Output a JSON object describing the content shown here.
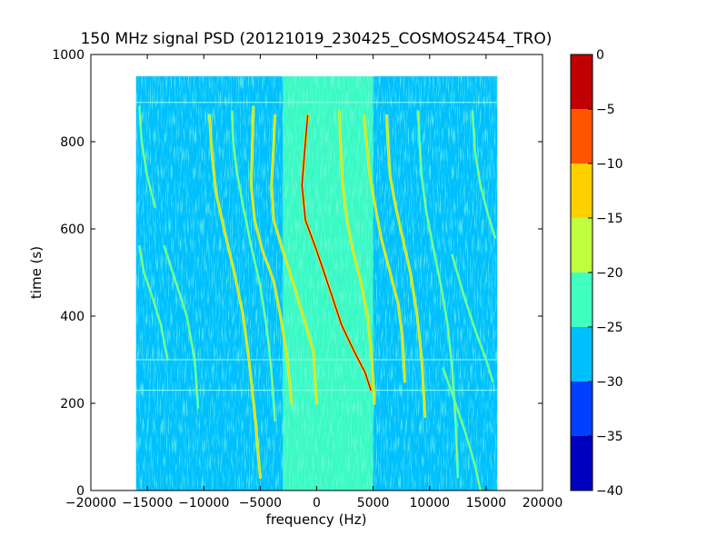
{
  "chart_data": {
    "type": "heatmap",
    "title": "150 MHz signal PSD (20121019_230425_COSMOS2454_TRO)",
    "xlabel": "frequency (Hz)",
    "ylabel": "time (s)",
    "xlim": [
      -20000,
      20000
    ],
    "ylim": [
      0,
      1000
    ],
    "xticks": [
      -20000,
      -15000,
      -10000,
      -5000,
      0,
      5000,
      10000,
      15000,
      20000
    ],
    "yticks": [
      0,
      200,
      400,
      600,
      800,
      1000
    ],
    "data_extent": {
      "x": [
        -16000,
        16000
      ],
      "y": [
        0,
        950
      ]
    },
    "background_level_range": [
      -30,
      -25
    ],
    "center_noise_level_range": [
      -25,
      -20
    ],
    "center_noise_band_hz": [
      -3000,
      5000
    ],
    "horizontal_artifact_times_s": [
      890,
      300,
      230
    ],
    "colorbar": {
      "ticks": [
        0,
        -5,
        -10,
        -15,
        -20,
        -25,
        -30,
        -35,
        -40
      ],
      "levels": [
        {
          "range": [
            -40,
            -35
          ],
          "color": "#0000bf"
        },
        {
          "range": [
            -35,
            -30
          ],
          "color": "#0040ff"
        },
        {
          "range": [
            -30,
            -25
          ],
          "color": "#00bfff"
        },
        {
          "range": [
            -25,
            -20
          ],
          "color": "#40ffbf"
        },
        {
          "range": [
            -20,
            -15
          ],
          "color": "#bfff40"
        },
        {
          "range": [
            -15,
            -10
          ],
          "color": "#ffd000"
        },
        {
          "range": [
            -10,
            -5
          ],
          "color": "#ff5500"
        },
        {
          "range": [
            -5,
            0
          ],
          "color": "#bf0000"
        }
      ]
    },
    "traces": [
      {
        "level": "strong",
        "points": [
          [
            -800,
            860
          ],
          [
            -1000,
            800
          ],
          [
            -1300,
            700
          ],
          [
            -1000,
            620
          ],
          [
            0,
            550
          ],
          [
            1300,
            450
          ],
          [
            2200,
            380
          ],
          [
            3300,
            320
          ],
          [
            4300,
            270
          ],
          [
            4800,
            230
          ]
        ]
      },
      {
        "level": "medium",
        "points": [
          [
            -3700,
            860
          ],
          [
            -3800,
            800
          ],
          [
            -4000,
            700
          ],
          [
            -3800,
            620
          ],
          [
            -3000,
            550
          ],
          [
            -2000,
            470
          ],
          [
            -1200,
            400
          ],
          [
            -300,
            320
          ],
          [
            0,
            200
          ]
        ]
      },
      {
        "level": "medium",
        "points": [
          [
            -5600,
            880
          ],
          [
            -5700,
            800
          ],
          [
            -5800,
            700
          ],
          [
            -5500,
            620
          ],
          [
            -4800,
            550
          ],
          [
            -3800,
            480
          ],
          [
            -3200,
            400
          ],
          [
            -2600,
            300
          ],
          [
            -2200,
            200
          ]
        ]
      },
      {
        "level": "medium",
        "points": [
          [
            2000,
            870
          ],
          [
            2100,
            800
          ],
          [
            2300,
            700
          ],
          [
            2700,
            620
          ],
          [
            3200,
            550
          ],
          [
            3900,
            480
          ],
          [
            4500,
            400
          ],
          [
            4900,
            300
          ],
          [
            5100,
            200
          ]
        ]
      },
      {
        "level": "medium",
        "points": [
          [
            4200,
            860
          ],
          [
            4400,
            800
          ],
          [
            4700,
            720
          ],
          [
            5200,
            650
          ],
          [
            5700,
            580
          ],
          [
            6500,
            500
          ],
          [
            7200,
            430
          ],
          [
            7600,
            350
          ],
          [
            7800,
            250
          ]
        ]
      },
      {
        "level": "medium",
        "points": [
          [
            6200,
            860
          ],
          [
            6300,
            800
          ],
          [
            6500,
            720
          ],
          [
            7000,
            650
          ],
          [
            7600,
            580
          ],
          [
            8300,
            500
          ],
          [
            8900,
            400
          ],
          [
            9300,
            300
          ],
          [
            9600,
            170
          ]
        ]
      },
      {
        "level": "medium",
        "points": [
          [
            -9500,
            860
          ],
          [
            -9300,
            780
          ],
          [
            -8900,
            680
          ],
          [
            -8200,
            600
          ],
          [
            -7300,
            500
          ],
          [
            -6500,
            400
          ],
          [
            -6000,
            300
          ],
          [
            -5500,
            180
          ],
          [
            -5000,
            30
          ]
        ]
      },
      {
        "level": "weak",
        "points": [
          [
            -7500,
            870
          ],
          [
            -7400,
            800
          ],
          [
            -7000,
            720
          ],
          [
            -6500,
            650
          ],
          [
            -5800,
            560
          ],
          [
            -5000,
            470
          ],
          [
            -4400,
            370
          ],
          [
            -4000,
            270
          ],
          [
            -3700,
            160
          ]
        ]
      },
      {
        "level": "weak",
        "points": [
          [
            9000,
            870
          ],
          [
            9100,
            800
          ],
          [
            9300,
            720
          ],
          [
            9700,
            640
          ],
          [
            10300,
            560
          ],
          [
            11000,
            470
          ],
          [
            11600,
            380
          ],
          [
            12000,
            280
          ],
          [
            12300,
            160
          ],
          [
            12500,
            30
          ]
        ]
      },
      {
        "level": "weak",
        "points": [
          [
            13800,
            870
          ],
          [
            14000,
            780
          ],
          [
            14500,
            700
          ],
          [
            15200,
            630
          ],
          [
            15800,
            580
          ]
        ]
      },
      {
        "level": "weak",
        "points": [
          [
            -15700,
            880
          ],
          [
            -15500,
            800
          ],
          [
            -15000,
            720
          ],
          [
            -14300,
            650
          ]
        ]
      },
      {
        "level": "weak",
        "points": [
          [
            -15700,
            560
          ],
          [
            -15300,
            500
          ],
          [
            -14500,
            440
          ],
          [
            -13800,
            380
          ],
          [
            -13200,
            300
          ]
        ]
      },
      {
        "level": "weak",
        "points": [
          [
            -13500,
            560
          ],
          [
            -12500,
            480
          ],
          [
            -11500,
            400
          ],
          [
            -10800,
            300
          ],
          [
            -10500,
            190
          ]
        ]
      },
      {
        "level": "weak",
        "points": [
          [
            12000,
            540
          ],
          [
            13000,
            450
          ],
          [
            14000,
            370
          ],
          [
            15000,
            300
          ],
          [
            15600,
            250
          ]
        ]
      },
      {
        "level": "weak",
        "points": [
          [
            11200,
            280
          ],
          [
            12300,
            200
          ],
          [
            13200,
            130
          ],
          [
            14000,
            60
          ],
          [
            14500,
            0
          ]
        ]
      }
    ]
  }
}
